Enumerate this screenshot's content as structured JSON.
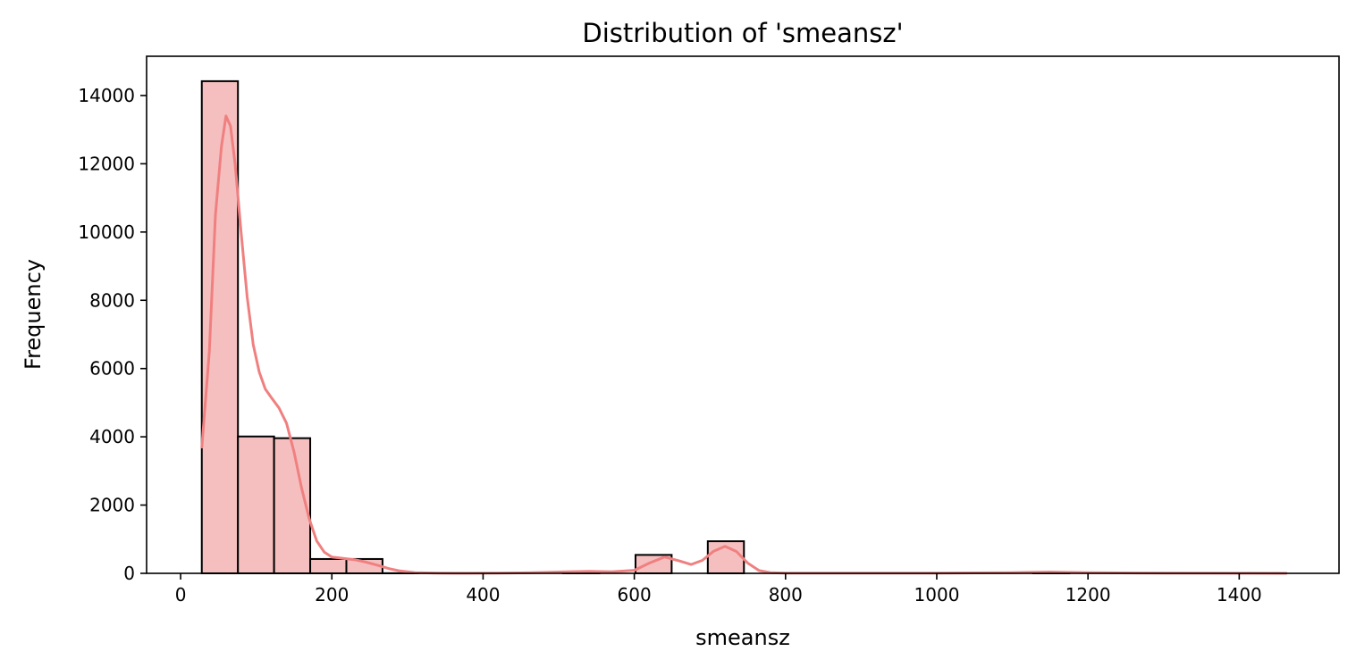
{
  "chart_data": {
    "type": "bar",
    "title": "Distribution of 'smeansz'",
    "xlabel": "smeansz",
    "ylabel": "Frequency",
    "xlim": [
      -45,
      1532
    ],
    "ylim": [
      0,
      15150
    ],
    "xticks": [
      0,
      200,
      400,
      600,
      800,
      1000,
      1200,
      1400
    ],
    "yticks": [
      0,
      2000,
      4000,
      6000,
      8000,
      10000,
      12000,
      14000
    ],
    "grid": false,
    "bin_edges": [
      28,
      75.8,
      123.6,
      171.4,
      219.2,
      267,
      314.8,
      362.6,
      410.4,
      458.2,
      506,
      553.8,
      601.6,
      649.4,
      697.2,
      745,
      792.8,
      840.6,
      888.4,
      936.2,
      984,
      1031.8,
      1079.6,
      1127.4,
      1175.2,
      1223,
      1270.8,
      1318.6,
      1366.4,
      1414.2,
      1462
    ],
    "counts": [
      14420,
      4010,
      3960,
      420,
      420,
      5,
      0,
      0,
      0,
      0,
      20,
      0,
      540,
      0,
      940,
      0,
      0,
      0,
      0,
      0,
      0,
      0,
      0,
      5,
      0,
      0,
      0,
      0,
      0,
      5
    ],
    "kde": {
      "x": [
        28,
        38,
        46,
        54,
        60,
        66,
        72,
        80,
        88,
        96,
        104,
        112,
        120,
        130,
        140,
        150,
        160,
        170,
        180,
        190,
        200,
        215,
        230,
        245,
        260,
        275,
        290,
        310,
        340,
        380,
        420,
        460,
        500,
        540,
        570,
        600,
        620,
        640,
        660,
        675,
        690,
        705,
        720,
        735,
        750,
        765,
        780,
        800,
        850,
        900,
        1000,
        1100,
        1150,
        1200,
        1300,
        1400,
        1462
      ],
      "y": [
        3700,
        6500,
        10500,
        12500,
        13400,
        13100,
        12000,
        10000,
        8100,
        6700,
        5900,
        5400,
        5150,
        4850,
        4400,
        3550,
        2500,
        1600,
        950,
        620,
        480,
        440,
        400,
        330,
        240,
        140,
        70,
        20,
        5,
        2,
        5,
        15,
        40,
        60,
        45,
        90,
        300,
        480,
        360,
        260,
        380,
        650,
        790,
        640,
        300,
        80,
        20,
        5,
        5,
        5,
        5,
        20,
        40,
        20,
        5,
        2,
        0
      ]
    },
    "colors": {
      "bar_fill": "#f5bfbf",
      "bar_edge": "#000000",
      "kde_line": "#f08080"
    }
  }
}
